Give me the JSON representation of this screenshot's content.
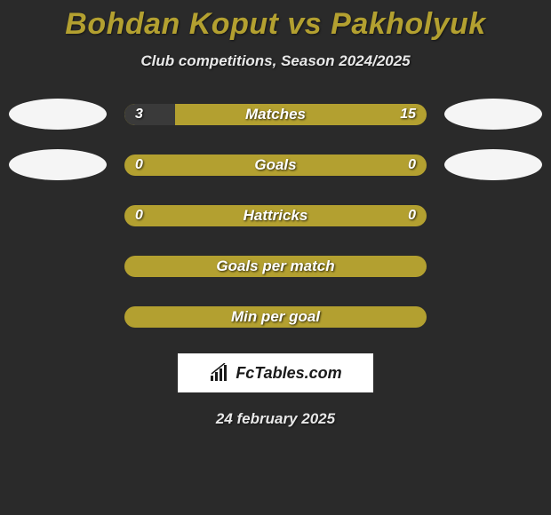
{
  "title": "Bohdan Koput vs Pakholyuk",
  "subtitle": "Club competitions, Season 2024/2025",
  "date": "24 february 2025",
  "logo_text": "FcTables.com",
  "background_color": "#2a2a2a",
  "accent_color": "#b3a030",
  "bar_fill_color": "#3a3a3a",
  "text_color": "#ffffff",
  "avatar_color": "#f5f5f5",
  "stats": [
    {
      "label": "Matches",
      "left_value": "3",
      "right_value": "15",
      "left_pct": 16.67,
      "right_pct": 0,
      "show_left_avatar": true,
      "show_right_avatar": true
    },
    {
      "label": "Goals",
      "left_value": "0",
      "right_value": "0",
      "left_pct": 0,
      "right_pct": 0,
      "show_left_avatar": true,
      "show_right_avatar": true
    },
    {
      "label": "Hattricks",
      "left_value": "0",
      "right_value": "0",
      "left_pct": 0,
      "right_pct": 0,
      "show_left_avatar": false,
      "show_right_avatar": false
    },
    {
      "label": "Goals per match",
      "left_value": "",
      "right_value": "",
      "left_pct": 0,
      "right_pct": 0,
      "show_left_avatar": false,
      "show_right_avatar": false
    },
    {
      "label": "Min per goal",
      "left_value": "",
      "right_value": "",
      "left_pct": 0,
      "right_pct": 0,
      "show_left_avatar": false,
      "show_right_avatar": false
    }
  ]
}
